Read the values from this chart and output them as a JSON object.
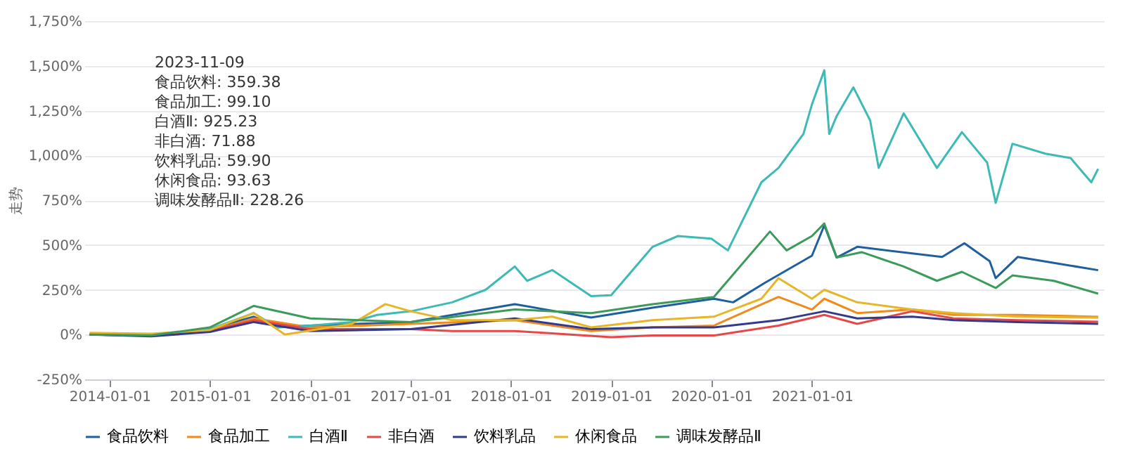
{
  "chart_data": {
    "type": "line",
    "ylabel": "走势",
    "grid": "y",
    "legend": "bottom",
    "marker": "none",
    "line_style": "solid",
    "xlim": [
      "2013-10-01",
      "2023-11-30"
    ],
    "xticks": [
      "2014-01-01",
      "2015-01-01",
      "2016-01-01",
      "2017-01-01",
      "2018-01-01",
      "2019-01-01",
      "2020-01-01",
      "2021-01-01"
    ],
    "ylim": [
      -250,
      1750
    ],
    "yticks": [
      {
        "value": -250,
        "label": "-250%"
      },
      {
        "value": 0,
        "label": "0%"
      },
      {
        "value": 250,
        "label": "250%"
      },
      {
        "value": 500,
        "label": "500%"
      },
      {
        "value": 750,
        "label": "750%"
      },
      {
        "value": 1000,
        "label": "1,000%"
      },
      {
        "value": 1250,
        "label": "1,250%"
      },
      {
        "value": 1500,
        "label": "1,500%"
      },
      {
        "value": 1750,
        "label": "1,750%"
      }
    ],
    "annotations": [
      "2023-11-09",
      "食品饮料: 359.38",
      "食品加工: 99.10",
      "白酒Ⅱ: 925.23",
      "非白酒: 71.88",
      "饮料乳品: 59.90",
      "休闲食品: 93.63",
      "调味发酵品Ⅱ: 228.26"
    ],
    "series": [
      {
        "name": "食品饮料",
        "color": "#1f5f9e",
        "x": [
          "2013-10-20",
          "2014-06-01",
          "2015-01-01",
          "2015-06-10",
          "2015-09-01",
          "2016-01-01",
          "2017-01-01",
          "2018-01-15",
          "2018-10-20",
          "2019-06-01",
          "2020-01-10",
          "2020-03-20",
          "2020-07-15",
          "2021-01-01",
          "2021-02-15",
          "2021-04-01",
          "2021-06-15",
          "2022-04-20",
          "2022-07-10",
          "2022-10-10",
          "2022-11-01",
          "2023-01-20",
          "2023-06-01",
          "2023-11-09"
        ],
        "values": [
          0,
          -5,
          30,
          100,
          40,
          50,
          70,
          170,
          95,
          150,
          200,
          180,
          290,
          440,
          610,
          430,
          490,
          433,
          510,
          410,
          315,
          433,
          400,
          359.38
        ]
      },
      {
        "name": "食品加工",
        "color": "#f08a1c",
        "x": [
          "2013-10-20",
          "2014-06-01",
          "2015-01-01",
          "2015-06-10",
          "2016-01-01",
          "2017-01-01",
          "2018-01-15",
          "2018-10-20",
          "2019-06-01",
          "2020-01-10",
          "2020-09-01",
          "2021-01-01",
          "2021-02-15",
          "2021-06-15",
          "2022-01-01",
          "2022-06-01",
          "2023-01-20",
          "2023-11-09"
        ],
        "values": [
          0,
          -5,
          20,
          90,
          40,
          60,
          80,
          20,
          40,
          50,
          210,
          140,
          200,
          120,
          140,
          110,
          110,
          99.1
        ]
      },
      {
        "name": "白酒Ⅱ",
        "color": "#3dbab6",
        "x": [
          "2013-10-20",
          "2014-06-01",
          "2015-01-01",
          "2015-06-10",
          "2015-09-01",
          "2016-01-01",
          "2016-06-01",
          "2016-09-01",
          "2017-01-01",
          "2017-06-01",
          "2017-10-01",
          "2018-01-15",
          "2018-03-01",
          "2018-06-01",
          "2018-10-20",
          "2019-01-01",
          "2019-06-01",
          "2019-09-01",
          "2020-01-01",
          "2020-03-01",
          "2020-07-01",
          "2020-09-01",
          "2020-12-01",
          "2021-01-01",
          "2021-02-15",
          "2021-03-05",
          "2021-04-01",
          "2021-06-01",
          "2021-08-01",
          "2021-09-01",
          "2021-12-01",
          "2022-04-01",
          "2022-07-01",
          "2022-10-01",
          "2022-11-01",
          "2023-01-01",
          "2023-05-01",
          "2023-08-01",
          "2023-10-15",
          "2023-11-09"
        ],
        "values": [
          0,
          -5,
          30,
          120,
          40,
          50,
          70,
          110,
          130,
          180,
          250,
          380,
          300,
          360,
          215,
          220,
          490,
          550,
          535,
          470,
          850,
          930,
          1120,
          1285,
          1475,
          1120,
          1220,
          1380,
          1195,
          930,
          1235,
          930,
          1130,
          960,
          735,
          1065,
          1010,
          985,
          850,
          925.23
        ]
      },
      {
        "name": "非白酒",
        "color": "#e64848",
        "x": [
          "2013-10-20",
          "2014-06-01",
          "2015-01-01",
          "2015-06-10",
          "2016-01-01",
          "2017-01-01",
          "2017-06-01",
          "2018-01-15",
          "2019-01-01",
          "2019-06-01",
          "2020-01-10",
          "2020-09-01",
          "2021-02-15",
          "2021-06-15",
          "2022-01-01",
          "2022-06-01",
          "2023-01-20",
          "2023-11-09"
        ],
        "values": [
          0,
          -5,
          20,
          80,
          30,
          30,
          20,
          20,
          -15,
          -5,
          -5,
          50,
          110,
          60,
          130,
          90,
          80,
          71.88
        ]
      },
      {
        "name": "饮料乳品",
        "color": "#333a8a",
        "x": [
          "2013-10-20",
          "2014-06-01",
          "2015-01-01",
          "2015-06-10",
          "2016-01-01",
          "2017-01-01",
          "2018-01-15",
          "2018-10-20",
          "2019-06-01",
          "2020-01-10",
          "2020-09-01",
          "2021-02-15",
          "2021-06-15",
          "2022-01-01",
          "2022-06-01",
          "2023-01-20",
          "2023-11-09"
        ],
        "values": [
          0,
          -10,
          15,
          70,
          20,
          30,
          90,
          30,
          40,
          40,
          80,
          130,
          90,
          100,
          80,
          70,
          59.9
        ]
      },
      {
        "name": "休闲食品",
        "color": "#e6b628",
        "x": [
          "2013-10-20",
          "2014-06-01",
          "2015-01-01",
          "2015-06-10",
          "2015-10-01",
          "2016-06-01",
          "2016-10-01",
          "2017-01-01",
          "2017-06-01",
          "2018-01-15",
          "2018-06-01",
          "2018-10-20",
          "2019-06-01",
          "2020-01-10",
          "2020-07-01",
          "2020-09-01",
          "2021-01-01",
          "2021-02-15",
          "2021-06-15",
          "2022-01-01",
          "2022-06-01",
          "2023-01-20",
          "2023-11-09"
        ],
        "values": [
          10,
          5,
          25,
          120,
          0,
          60,
          170,
          130,
          80,
          80,
          100,
          40,
          80,
          100,
          200,
          315,
          200,
          250,
          180,
          140,
          120,
          100,
          93.63
        ]
      },
      {
        "name": "调味发酵品Ⅱ",
        "color": "#3c9a5a",
        "x": [
          "2013-10-20",
          "2014-06-01",
          "2015-01-01",
          "2015-06-10",
          "2016-01-01",
          "2017-01-01",
          "2018-01-15",
          "2018-10-20",
          "2019-06-01",
          "2020-01-10",
          "2020-08-01",
          "2020-10-01",
          "2021-01-01",
          "2021-02-15",
          "2021-04-01",
          "2021-07-01",
          "2021-12-01",
          "2022-04-01",
          "2022-07-01",
          "2022-11-01",
          "2023-01-01",
          "2023-06-01",
          "2023-11-09"
        ],
        "values": [
          0,
          -5,
          40,
          160,
          90,
          70,
          140,
          120,
          170,
          210,
          575,
          470,
          550,
          620,
          430,
          460,
          380,
          300,
          350,
          260,
          330,
          300,
          228.26
        ]
      }
    ]
  }
}
